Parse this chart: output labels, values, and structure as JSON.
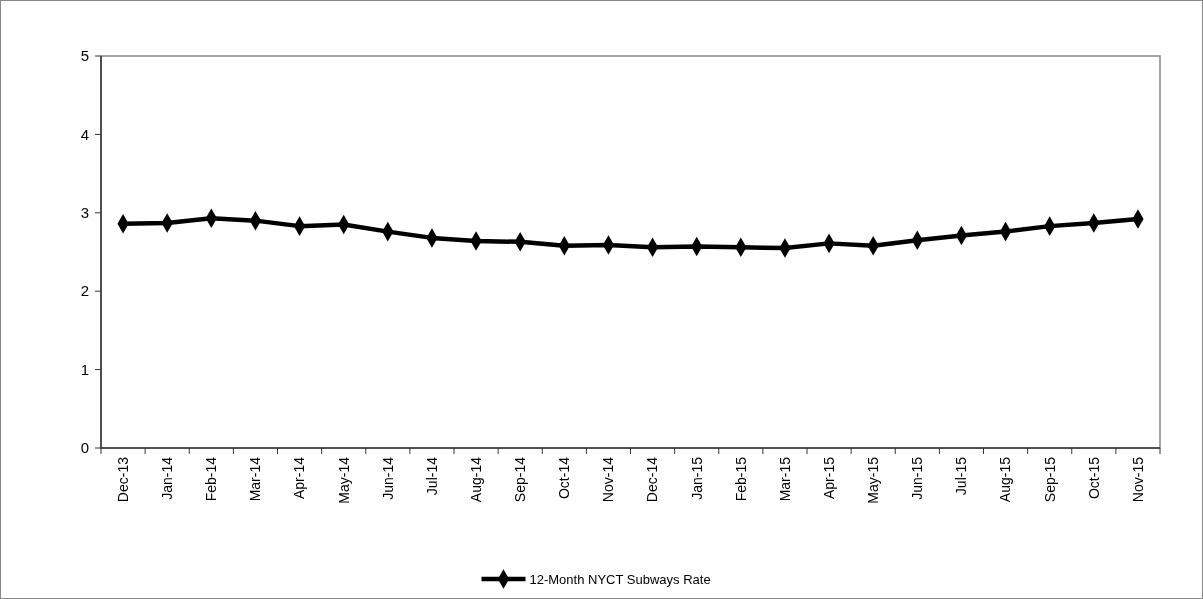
{
  "chart_data": {
    "type": "line",
    "categories": [
      "Dec-13",
      "Jan-14",
      "Feb-14",
      "Mar-14",
      "Apr-14",
      "May-14",
      "Jun-14",
      "Jul-14",
      "Aug-14",
      "Sep-14",
      "Oct-14",
      "Nov-14",
      "Dec-14",
      "Jan-15",
      "Feb-15",
      "Mar-15",
      "Apr-15",
      "May-15",
      "Jun-15",
      "Jul-15",
      "Aug-15",
      "Sep-15",
      "Oct-15",
      "Nov-15"
    ],
    "series": [
      {
        "name": "12-Month NYCT Subways Rate",
        "color": "#000000",
        "values": [
          2.86,
          2.87,
          2.93,
          2.9,
          2.83,
          2.85,
          2.76,
          2.68,
          2.64,
          2.63,
          2.58,
          2.59,
          2.56,
          2.57,
          2.56,
          2.55,
          2.61,
          2.58,
          2.65,
          2.71,
          2.76,
          2.83,
          2.87,
          2.92
        ]
      }
    ],
    "ylim": [
      0,
      5
    ],
    "yticks": [
      0,
      1,
      2,
      3,
      4,
      5
    ],
    "grid": false,
    "legend": "bottom",
    "marker": "diamond",
    "line_style": "solid"
  }
}
